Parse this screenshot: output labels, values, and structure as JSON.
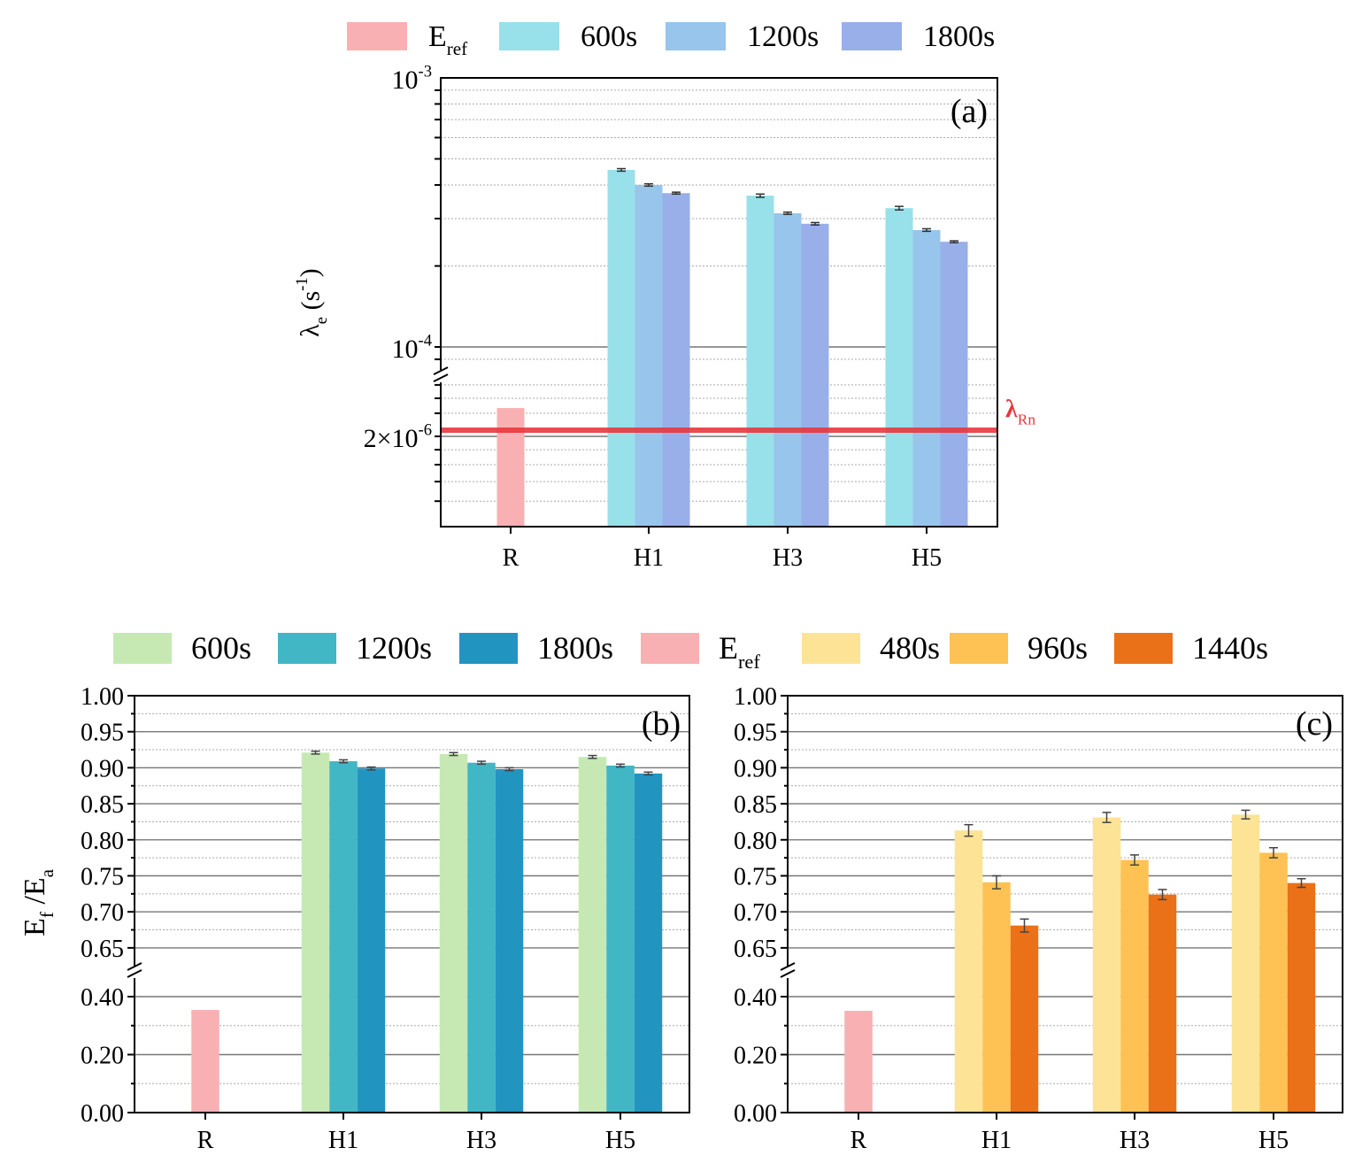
{
  "chart_data": [
    {
      "type": "bar",
      "panel_label": "(a)",
      "title": "",
      "xlabel": "",
      "ylabel": "λe (s-1)",
      "yscale": "log (broken axis)",
      "categories": [
        "R",
        "H1",
        "H3",
        "H5"
      ],
      "series": [
        {
          "name": "Eref",
          "color": "#f9b0b2",
          "values": [
            2.5e-06,
            null,
            null,
            null
          ]
        },
        {
          "name": "600s",
          "color": "#98e0ea",
          "values": [
            null,
            0.000455,
            0.000365,
            0.000328
          ],
          "errors": [
            null,
            5e-06,
            5e-06,
            5e-06
          ]
        },
        {
          "name": "1200s",
          "color": "#98c5ec",
          "values": [
            null,
            0.0004,
            0.000314,
            0.000272
          ],
          "errors": [
            null,
            4e-06,
            3e-06,
            3e-06
          ]
        },
        {
          "name": "1800s",
          "color": "#99afea",
          "values": [
            null,
            0.000373,
            0.000287,
            0.000246
          ],
          "errors": [
            null,
            3e-06,
            3e-06,
            2e-06
          ]
        }
      ],
      "yticks": [
        {
          "label_base": "10",
          "label_exp": "-3",
          "value": 0.001
        },
        {
          "label_base": "10",
          "label_exp": "-4",
          "value": 0.0001
        },
        {
          "label_base": "2×10",
          "label_exp": "-6",
          "value": 2e-06
        }
      ],
      "ylim_upper": [
        9e-05,
        0.001
      ],
      "ylim_lower": [
        1e-06,
        3.2e-06
      ],
      "reference_line": {
        "label_base": "λ",
        "label_sub": "Rn",
        "value": 2.1e-06,
        "color": "#e8373d"
      },
      "legend": {
        "placement": "top",
        "entries": [
          {
            "text": "E",
            "sub": "ref"
          },
          {
            "text": "600s"
          },
          {
            "text": "1200s"
          },
          {
            "text": "1800s"
          }
        ]
      },
      "grid": true,
      "y_axis_label": {
        "base": "λ",
        "sub": "e",
        "rest": " (s",
        "exp": "-1",
        "close": ")"
      }
    },
    {
      "type": "bar",
      "panel_label": "(b)",
      "ylabel": "Ef /Ea",
      "categories": [
        "R",
        "H1",
        "H3",
        "H5"
      ],
      "series": [
        {
          "name": "Eref",
          "color": "#f9b0b2",
          "values": [
            0.354,
            null,
            null,
            null
          ]
        },
        {
          "name": "600s",
          "color": "#c6e9b4",
          "values": [
            null,
            0.921,
            0.919,
            0.915
          ],
          "errors": [
            null,
            0.002,
            0.002,
            0.002
          ]
        },
        {
          "name": "1200s",
          "color": "#41b6c4",
          "values": [
            null,
            0.909,
            0.907,
            0.903
          ],
          "errors": [
            null,
            0.002,
            0.002,
            0.002
          ]
        },
        {
          "name": "1800s",
          "color": "#2195c0",
          "values": [
            null,
            0.899,
            0.898,
            0.892
          ],
          "errors": [
            null,
            0.002,
            0.002,
            0.002
          ]
        }
      ],
      "yticks_upper": [
        "1.00",
        "0.95",
        "0.90",
        "0.85",
        "0.80",
        "0.75",
        "0.70",
        "0.65"
      ],
      "yticks_lower": [
        "0.40",
        "0.20",
        "0.00"
      ],
      "ylim_upper": [
        0.65,
        1.0
      ],
      "ylim_lower": [
        0,
        0.4
      ],
      "grid": true
    },
    {
      "type": "bar",
      "panel_label": "(c)",
      "ylabel": "Ef /Ea",
      "categories": [
        "R",
        "H1",
        "H3",
        "H5"
      ],
      "series": [
        {
          "name": "Eref",
          "color": "#f9b0b2",
          "values": [
            0.351,
            null,
            null,
            null
          ]
        },
        {
          "name": "480s",
          "color": "#fde395",
          "values": [
            null,
            0.813,
            0.831,
            0.835
          ],
          "errors": [
            null,
            0.008,
            0.007,
            0.006
          ]
        },
        {
          "name": "960s",
          "color": "#fdc253",
          "values": [
            null,
            0.741,
            0.772,
            0.782
          ],
          "errors": [
            null,
            0.009,
            0.007,
            0.007
          ]
        },
        {
          "name": "1440s",
          "color": "#ea7118",
          "values": [
            null,
            0.681,
            0.724,
            0.74
          ],
          "errors": [
            null,
            0.009,
            0.007,
            0.006
          ]
        }
      ],
      "yticks_upper": [
        "1.00",
        "0.95",
        "0.90",
        "0.85",
        "0.80",
        "0.75",
        "0.70",
        "0.65"
      ],
      "yticks_lower": [
        "0.40",
        "0.20",
        "0.00"
      ],
      "ylim_upper": [
        0.65,
        1.0
      ],
      "ylim_lower": [
        0,
        0.4
      ],
      "grid": true
    }
  ],
  "bottom_legend": {
    "placement": "top",
    "entries": [
      {
        "text": "600s",
        "color": "#c6e9b4"
      },
      {
        "text": "1200s",
        "color": "#41b6c4"
      },
      {
        "text": "1800s",
        "color": "#2195c0"
      },
      {
        "text": "E",
        "sub": "ref",
        "color": "#f9b0b2"
      },
      {
        "text": "480s",
        "color": "#fde395"
      },
      {
        "text": "960s",
        "color": "#fdc253"
      },
      {
        "text": "1440s",
        "color": "#ea7118"
      }
    ]
  },
  "bottom_ylabel": {
    "base1": "E",
    "sub1": "f",
    "mid": " /E",
    "sub2": "a"
  }
}
